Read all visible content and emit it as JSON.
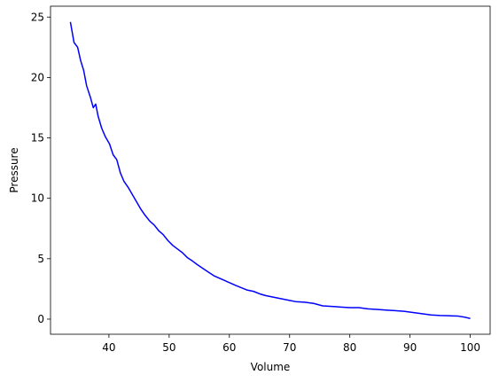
{
  "chart_data": {
    "type": "line",
    "title": "",
    "xlabel": "Volume",
    "ylabel": "Pressure",
    "xlim": [
      30.3,
      103.3
    ],
    "ylim": [
      -1.25,
      25.9
    ],
    "xticks": [
      40,
      50,
      60,
      70,
      80,
      90,
      100
    ],
    "yticks": [
      0,
      5,
      10,
      15,
      20,
      25
    ],
    "grid": false,
    "legend": "none",
    "series": [
      {
        "color": "#0000ff",
        "x": [
          33.6,
          34.2,
          34.8,
          35.3,
          35.8,
          36.3,
          36.9,
          37.4,
          37.8,
          38.2,
          38.8,
          39.4,
          40.1,
          40.7,
          41.3,
          41.9,
          42.5,
          43.2,
          43.9,
          44.6,
          45.3,
          46.0,
          46.8,
          47.5,
          48.3,
          49.0,
          49.8,
          50.6,
          51.4,
          52.2,
          53.0,
          53.9,
          54.7,
          55.6,
          56.5,
          57.4,
          58.3,
          59.2,
          60.1,
          61.0,
          62.0,
          63.0,
          64.0,
          65.0,
          66.0,
          67.0,
          68.0,
          69.0,
          70.0,
          71.0,
          72.5,
          74.0,
          75.5,
          77.0,
          78.5,
          80.0,
          81.5,
          83.0,
          84.5,
          86.0,
          87.5,
          89.0,
          90.5,
          92.0,
          93.5,
          95.0,
          96.5,
          98.0,
          99.2,
          100.0
        ],
        "y": [
          24.6,
          22.9,
          22.5,
          21.4,
          20.6,
          19.3,
          18.4,
          17.5,
          17.8,
          16.8,
          15.8,
          15.1,
          14.5,
          13.6,
          13.2,
          12.1,
          11.4,
          10.9,
          10.3,
          9.7,
          9.1,
          8.6,
          8.1,
          7.8,
          7.3,
          7.0,
          6.5,
          6.1,
          5.8,
          5.5,
          5.1,
          4.8,
          4.5,
          4.2,
          3.9,
          3.6,
          3.4,
          3.2,
          3.0,
          2.8,
          2.6,
          2.4,
          2.3,
          2.1,
          1.95,
          1.85,
          1.75,
          1.65,
          1.55,
          1.45,
          1.4,
          1.3,
          1.1,
          1.05,
          1.0,
          0.95,
          0.95,
          0.85,
          0.8,
          0.75,
          0.7,
          0.65,
          0.55,
          0.45,
          0.35,
          0.3,
          0.28,
          0.25,
          0.15,
          0.05
        ]
      }
    ]
  }
}
